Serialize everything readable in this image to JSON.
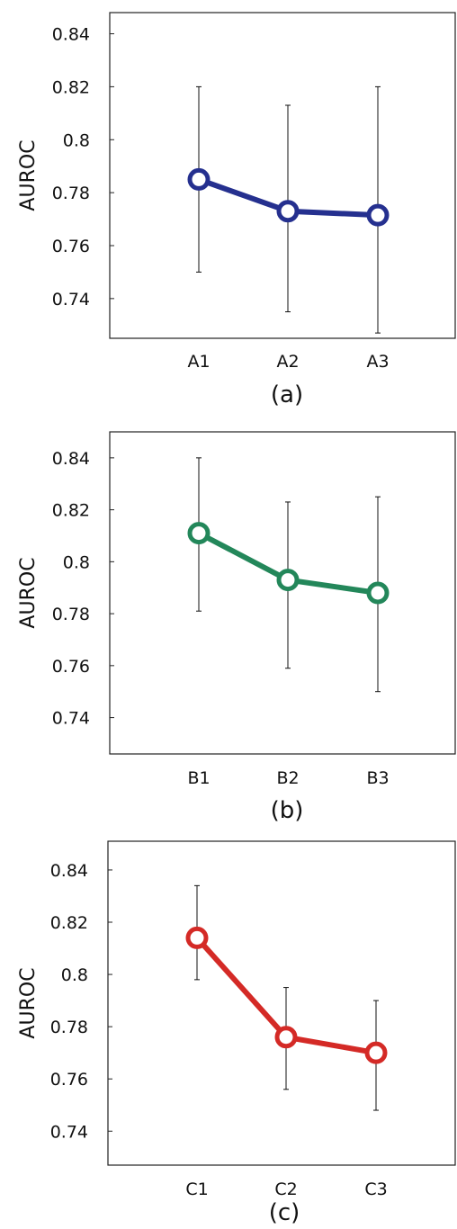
{
  "chart_data": [
    {
      "type": "line",
      "ylabel": "AUROC",
      "caption": "(a)",
      "color": "#25308f",
      "categories": [
        "A1",
        "A2",
        "A3"
      ],
      "values": [
        0.785,
        0.773,
        0.7715
      ],
      "error_low": [
        0.75,
        0.735,
        0.727
      ],
      "error_high": [
        0.82,
        0.813,
        0.82
      ],
      "ylim": [
        0.725,
        0.848
      ],
      "yticks": [
        "0.74",
        "0.76",
        "0.78",
        "0.8",
        "0.82",
        "0.84"
      ],
      "ytick_values": [
        0.74,
        0.76,
        0.78,
        0.8,
        0.82,
        0.84
      ]
    },
    {
      "type": "line",
      "ylabel": "AUROC",
      "caption": "(b)",
      "color": "#23875a",
      "categories": [
        "B1",
        "B2",
        "B3"
      ],
      "values": [
        0.811,
        0.793,
        0.788
      ],
      "error_low": [
        0.781,
        0.759,
        0.75
      ],
      "error_high": [
        0.84,
        0.823,
        0.825
      ],
      "ylim": [
        0.726,
        0.85
      ],
      "yticks": [
        "0.74",
        "0.76",
        "0.78",
        "0.8",
        "0.82",
        "0.84"
      ],
      "ytick_values": [
        0.74,
        0.76,
        0.78,
        0.8,
        0.82,
        0.84
      ]
    },
    {
      "type": "line",
      "ylabel": "AUROC",
      "caption": "(c)",
      "color": "#d42a26",
      "categories": [
        "C1",
        "C2",
        "C3"
      ],
      "values": [
        0.814,
        0.776,
        0.77
      ],
      "error_low": [
        0.798,
        0.756,
        0.748
      ],
      "error_high": [
        0.834,
        0.795,
        0.79
      ],
      "ylim": [
        0.727,
        0.851
      ],
      "yticks": [
        "0.74",
        "0.76",
        "0.78",
        "0.8",
        "0.82",
        "0.84"
      ],
      "ytick_values": [
        0.74,
        0.76,
        0.78,
        0.8,
        0.82,
        0.84
      ]
    }
  ]
}
